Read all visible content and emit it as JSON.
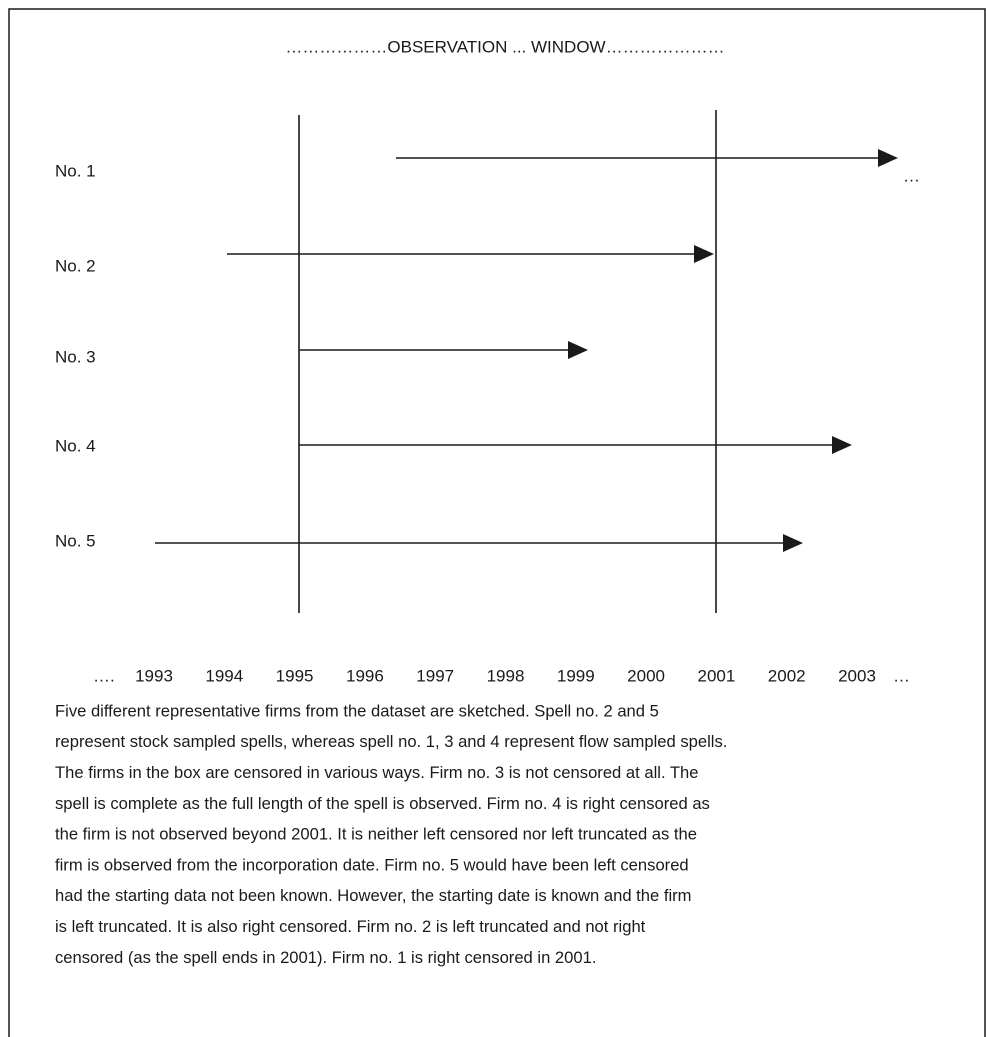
{
  "title": "………………OBSERVATION ... WINDOW…………………",
  "rows": [
    {
      "label": "No. 1"
    },
    {
      "label": "No. 2"
    },
    {
      "label": "No. 3"
    },
    {
      "label": "No. 4"
    },
    {
      "label": "No. 5"
    }
  ],
  "row1_continuation": "…",
  "axis": {
    "lead": "….",
    "years": [
      "1993",
      "1994",
      "1995",
      "1996",
      "1997",
      "1998",
      "1999",
      "2000",
      "2001",
      "2002",
      "2003"
    ],
    "trail": "…"
  },
  "caption": [
    "Five different representative firms from the dataset are sketched. Spell no. 2 and 5",
    "represent stock sampled spells, whereas spell no. 1, 3 and 4 represent flow sampled spells.",
    "The firms in the box are censored in various ways. Firm no. 3 is not censored at all. The",
    "spell is complete as the full length of the spell is observed. Firm no. 4 is right censored as",
    "the firm is not observed beyond 2001. It is neither left censored nor left truncated as the",
    "firm is observed from the incorporation date. Firm no. 5 would have been left censored",
    "had the starting data not been known. However, the starting date is known and the firm",
    "is left truncated. It is also right censored. Firm no. 2 is left truncated and not right",
    "censored (as the spell ends in 2001). Firm no. 1 is right censored in 2001."
  ]
}
